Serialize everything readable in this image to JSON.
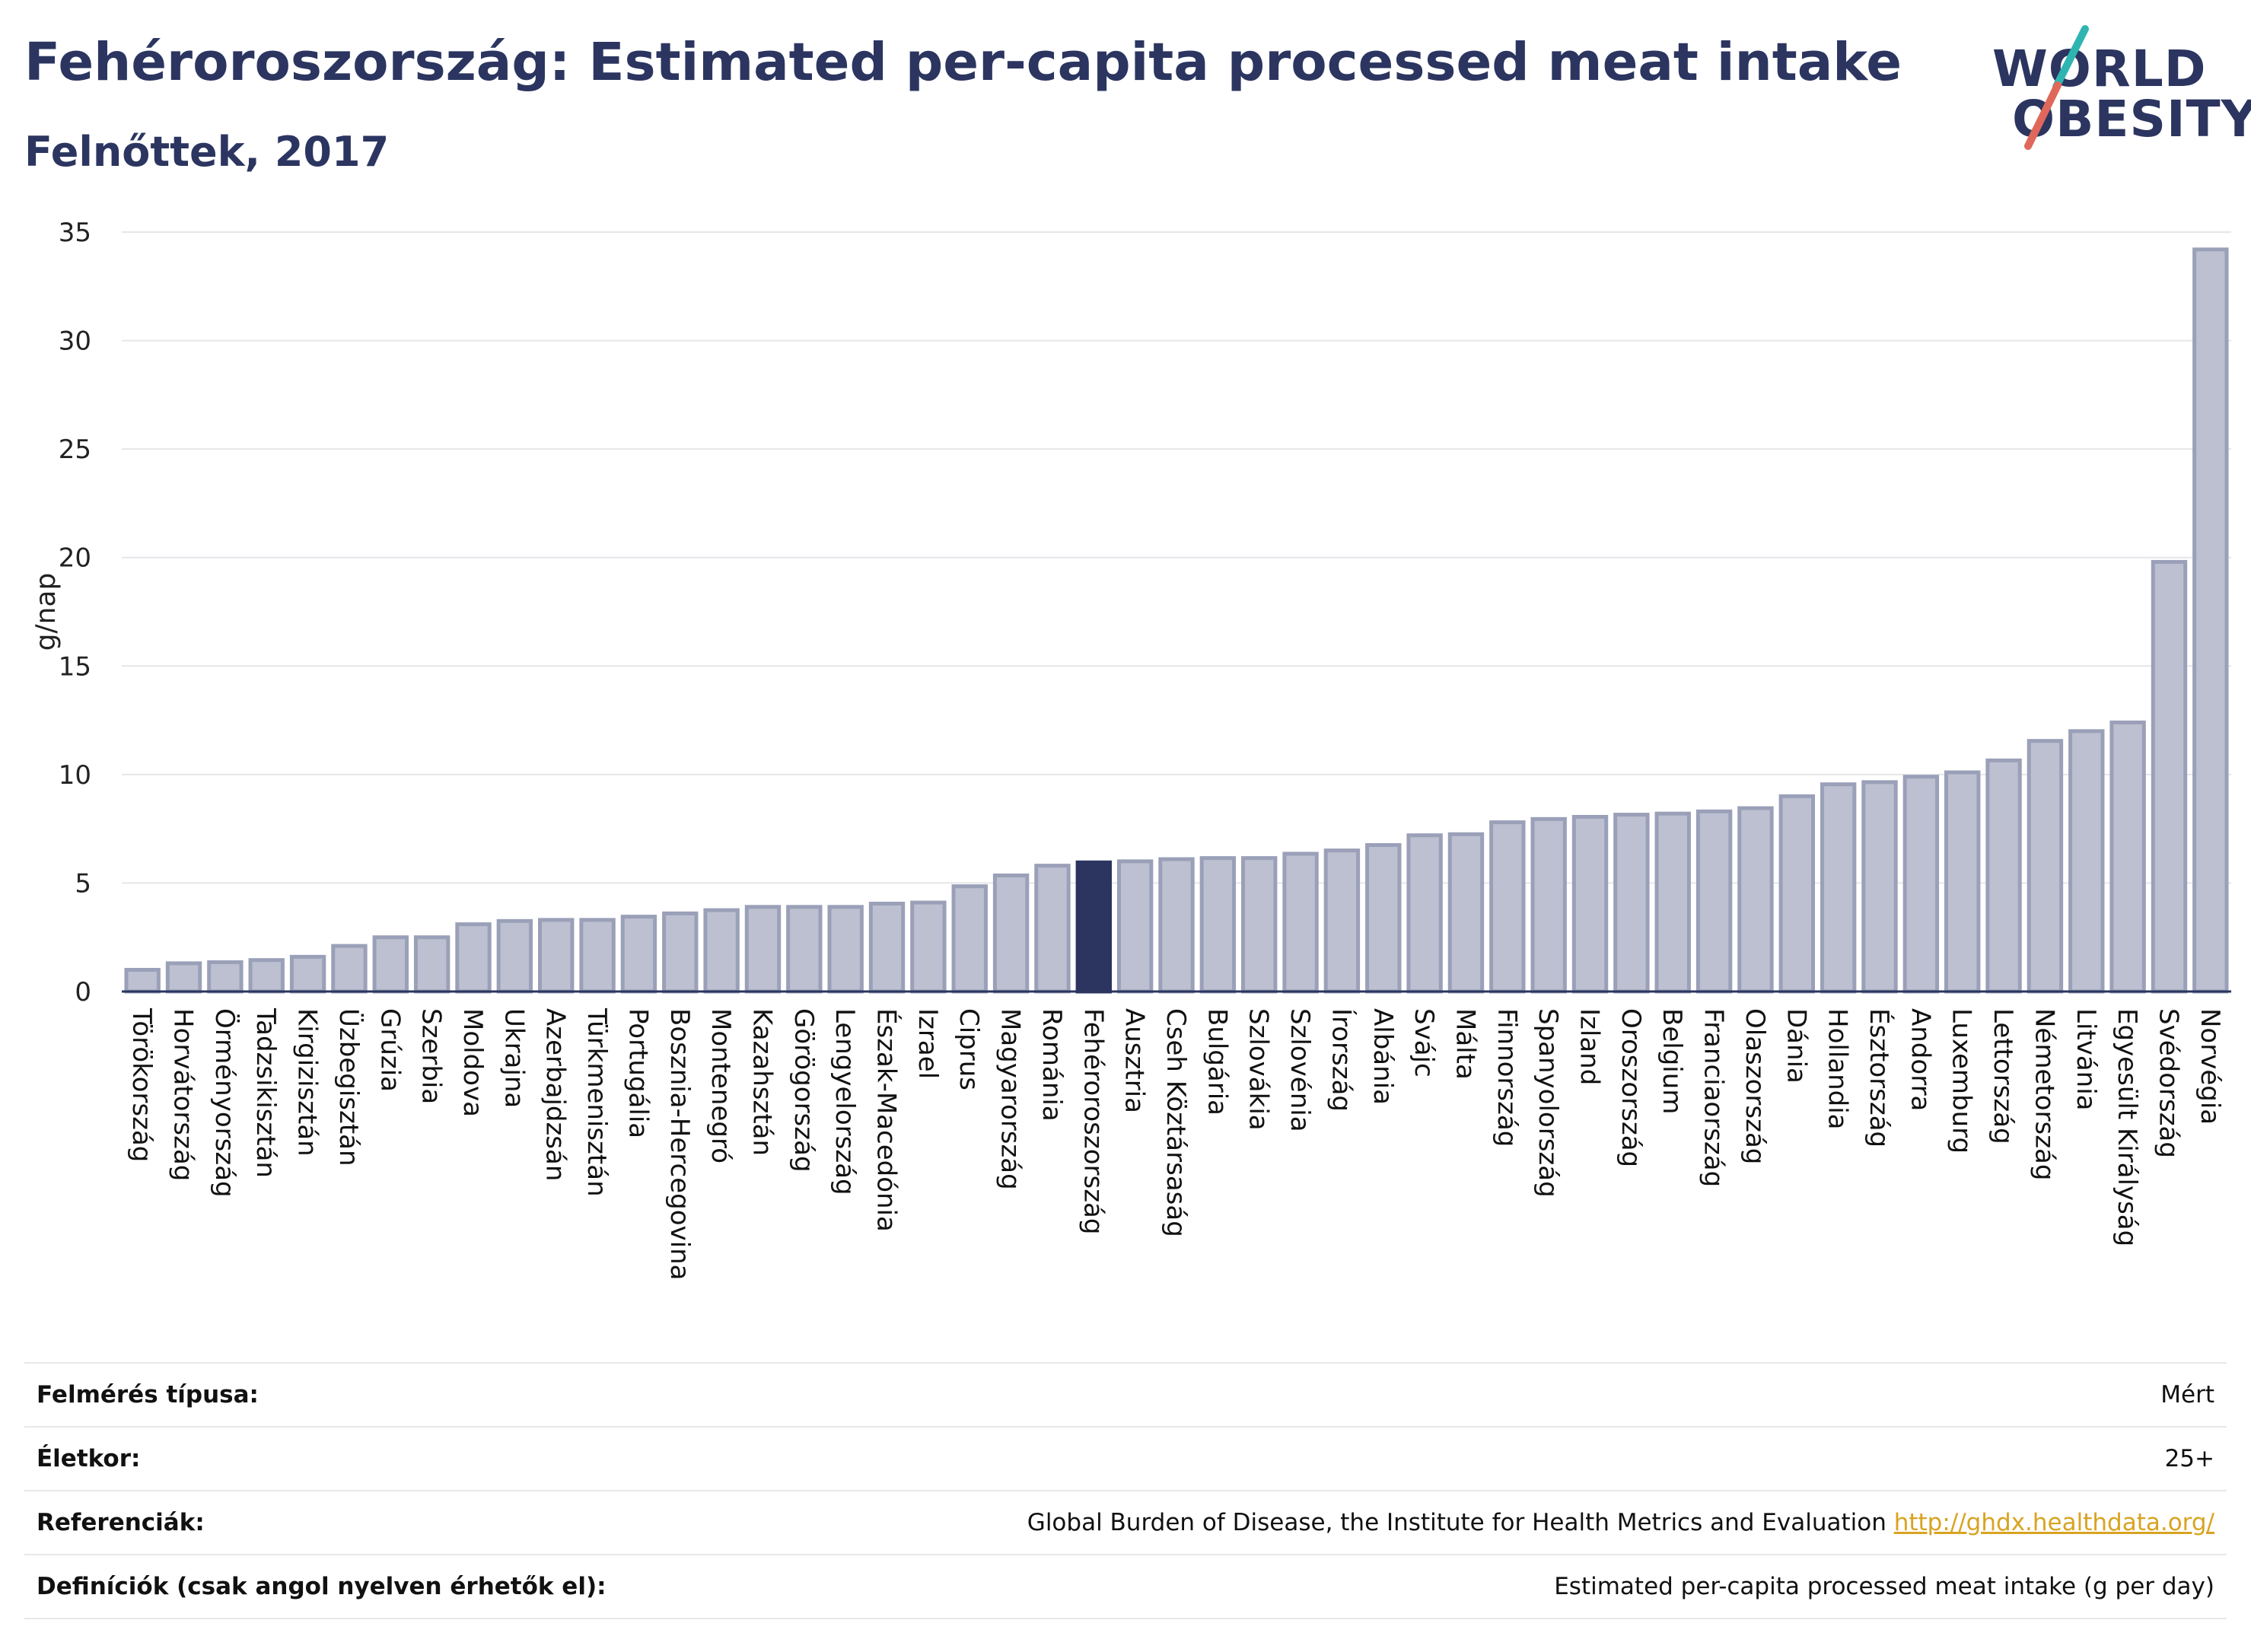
{
  "header": {
    "title": "Fehéroroszország: Estimated per-capita processed meat intake",
    "subtitle": "Felnőttek, 2017"
  },
  "logo": {
    "line1": "WORLD",
    "line2": "OBESITY",
    "accent_teal": "#2fb5b1",
    "accent_red": "#e0685a"
  },
  "colors": {
    "bar": "#bcc0d0",
    "bar_border": "#9aa0b8",
    "highlight": "#2b3560",
    "axis": "#2b3560",
    "grid": "#e6e6ea"
  },
  "chart_data": {
    "type": "bar",
    "ylabel": "g/nap",
    "ylim": [
      0,
      35
    ],
    "yticks": [
      0,
      5,
      10,
      15,
      20,
      25,
      30,
      35
    ],
    "highlight": "Fehéroroszország",
    "categories": [
      "Törökország",
      "Horvátország",
      "Örményország",
      "Tadzsikisztán",
      "Kirgizisztán",
      "Üzbegisztán",
      "Grúzia",
      "Szerbia",
      "Moldova",
      "Ukrajna",
      "Azerbajdzsán",
      "Türkmenisztán",
      "Portugália",
      "Bosznia-Hercegovina",
      "Montenegró",
      "Kazahsztán",
      "Görögország",
      "Lengyelország",
      "Észak-Macedónia",
      "Izrael",
      "Ciprus",
      "Magyarország",
      "Románia",
      "Fehéroroszország",
      "Ausztria",
      "Cseh Köztársaság",
      "Bulgária",
      "Szlovákia",
      "Szlovénia",
      "Írország",
      "Albánia",
      "Svájc",
      "Málta",
      "Finnország",
      "Spanyolország",
      "Izland",
      "Oroszország",
      "Belgium",
      "Franciaország",
      "Olaszország",
      "Dánia",
      "Hollandia",
      "Észtország",
      "Andorra",
      "Luxemburg",
      "Lettország",
      "Németország",
      "Litvánia",
      "Egyesült Királyság",
      "Svédország",
      "Norvégia"
    ],
    "values": [
      1.0,
      1.3,
      1.35,
      1.45,
      1.6,
      2.1,
      2.5,
      2.5,
      3.1,
      3.25,
      3.3,
      3.3,
      3.45,
      3.6,
      3.75,
      3.9,
      3.9,
      3.9,
      4.05,
      4.1,
      4.85,
      5.35,
      5.8,
      5.95,
      6.0,
      6.1,
      6.15,
      6.15,
      6.35,
      6.5,
      6.75,
      7.2,
      7.25,
      7.8,
      7.95,
      8.05,
      8.15,
      8.2,
      8.3,
      8.45,
      9.0,
      9.55,
      9.65,
      9.9,
      10.1,
      10.65,
      11.55,
      12.0,
      12.4,
      19.8,
      34.2
    ]
  },
  "meta": [
    {
      "label": "Felmérés típusa:",
      "value": "Mért"
    },
    {
      "label": "Életkor:",
      "value": "25+"
    },
    {
      "label": "Referenciák:",
      "value": "Global Burden of Disease, the Institute for Health Metrics and Evaluation",
      "link": "http://ghdx.healthdata.org/"
    },
    {
      "label": "Definíciók (csak angol nyelven érhetők el):",
      "value": "Estimated per-capita processed meat intake (g per day)"
    }
  ]
}
